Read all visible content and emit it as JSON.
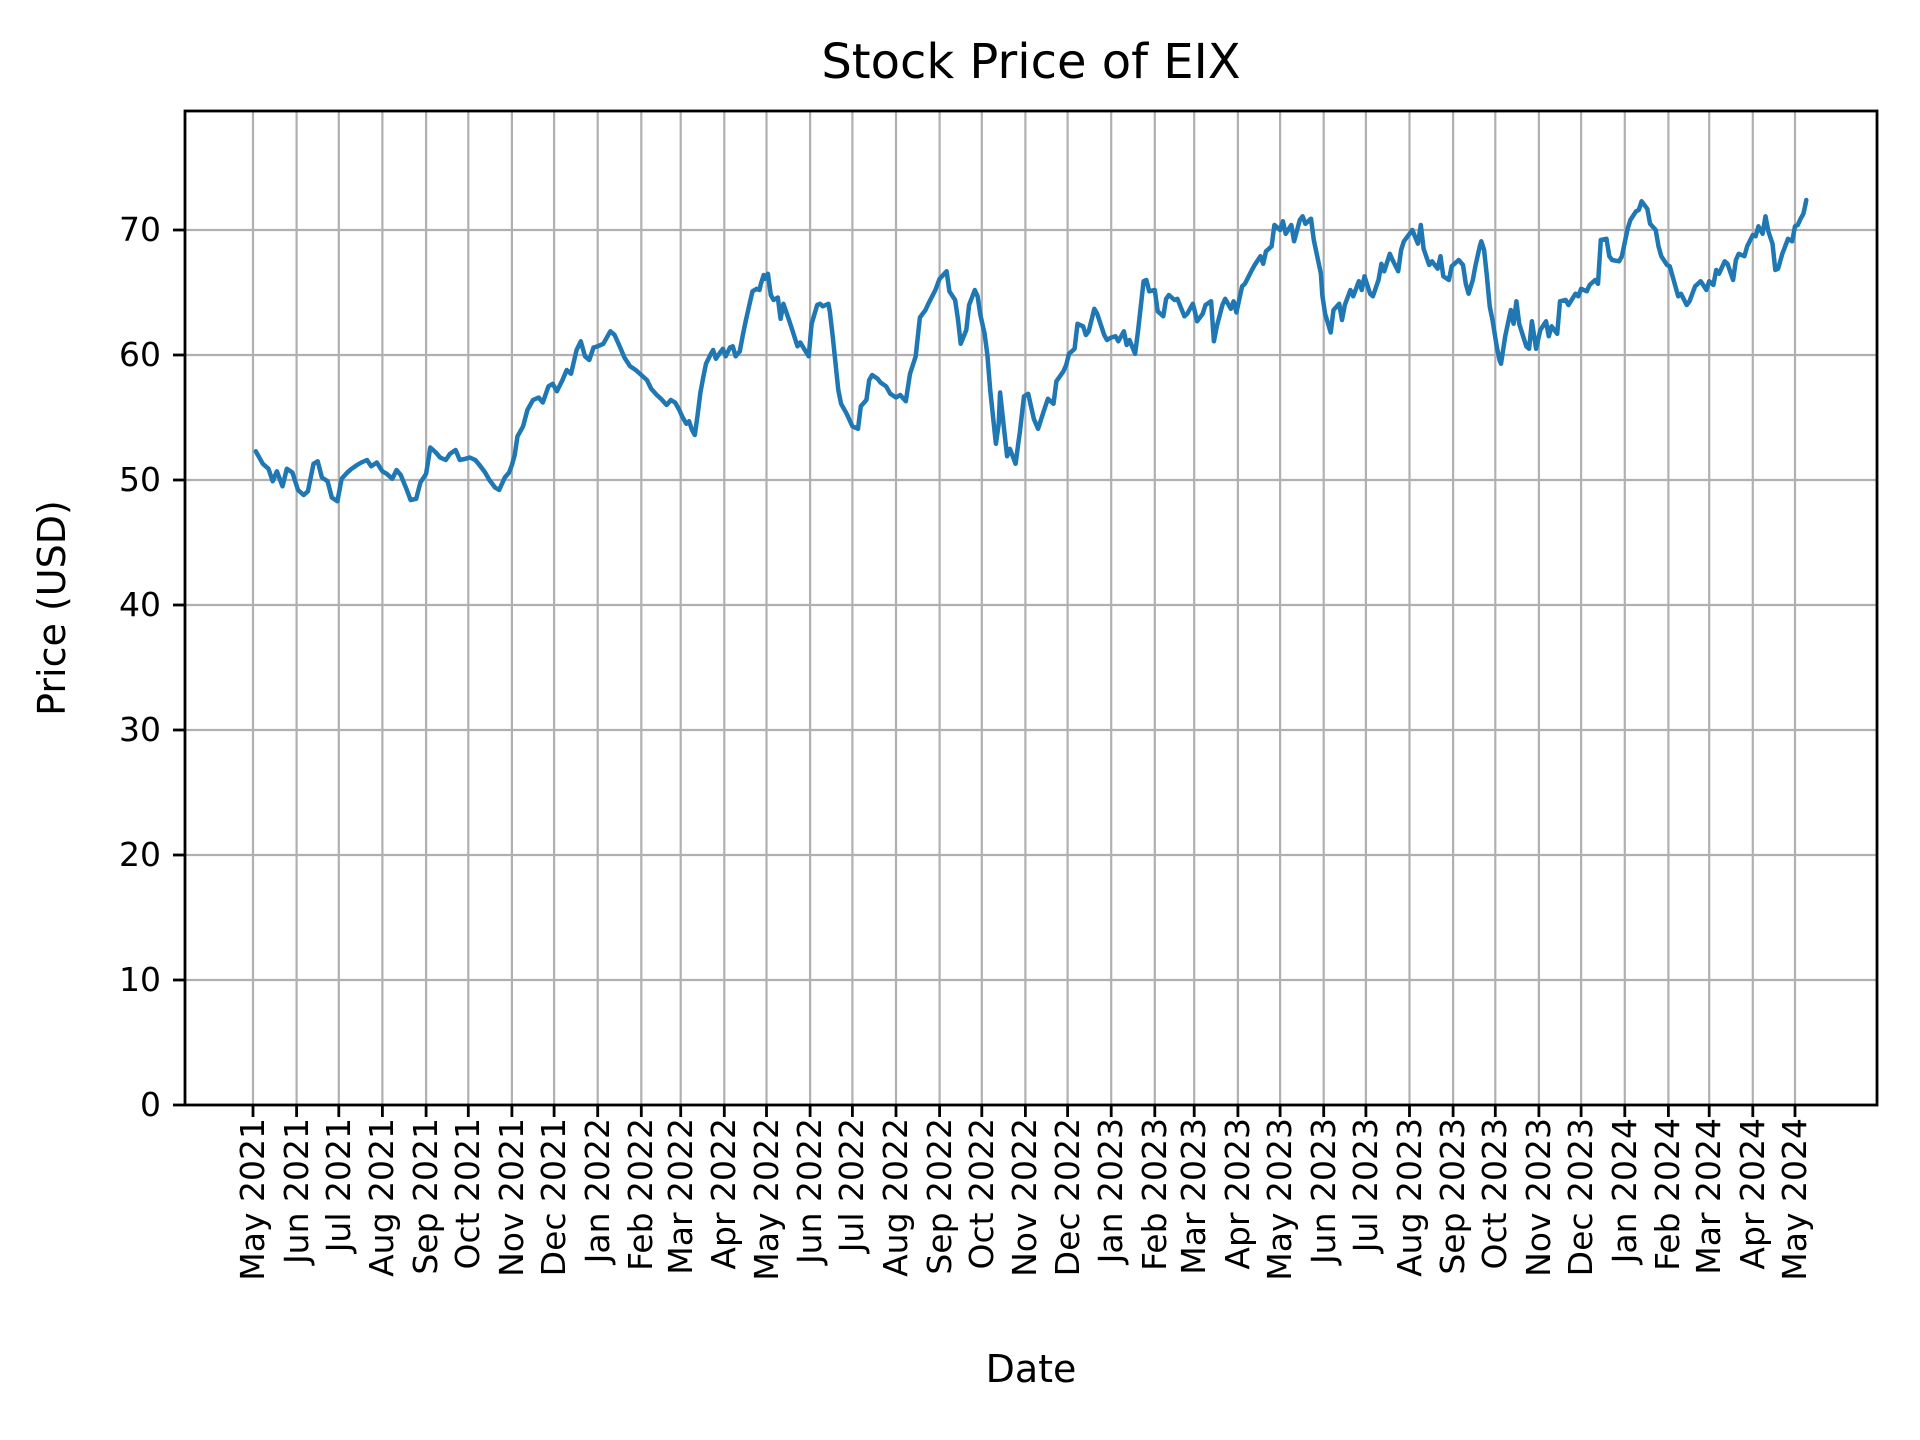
{
  "figure": {
    "title": "Stock Price of EIX",
    "xlabel": "Date",
    "ylabel": "Price (USD)"
  },
  "chart_data": {
    "type": "line",
    "title": "Stock Price of EIX",
    "xlabel": "Date",
    "ylabel": "Price (USD)",
    "series_name": "EIX",
    "line_color": "#1f77b4",
    "grid": true,
    "grid_color": "#b0b0b0",
    "legend": "none",
    "ylim": [
      0,
      79.5
    ],
    "y_ticks": [
      0,
      10,
      20,
      30,
      40,
      50,
      60,
      70
    ],
    "x_epoch": "2021-05-01",
    "x_tick_days": [
      0,
      31,
      61,
      92,
      123,
      153,
      184,
      214,
      245,
      276,
      304,
      335,
      365,
      396,
      426,
      457,
      488,
      518,
      549,
      579,
      610,
      641,
      669,
      700,
      730,
      761,
      791,
      822,
      853,
      883,
      914,
      944,
      975,
      1006,
      1035,
      1066,
      1096
    ],
    "x_tick_labels": [
      "May 2021",
      "Jun 2021",
      "Jul 2021",
      "Aug 2021",
      "Sep 2021",
      "Oct 2021",
      "Nov 2021",
      "Dec 2021",
      "Jan 2022",
      "Feb 2022",
      "Mar 2022",
      "Apr 2022",
      "May 2022",
      "Jun 2022",
      "Jul 2022",
      "Aug 2022",
      "Sep 2022",
      "Oct 2022",
      "Nov 2022",
      "Dec 2022",
      "Jan 2023",
      "Feb 2023",
      "Mar 2023",
      "Apr 2023",
      "May 2023",
      "Jun 2023",
      "Jul 2023",
      "Aug 2023",
      "Sep 2023",
      "Oct 2023",
      "Nov 2023",
      "Dec 2023",
      "Jan 2024",
      "Feb 2024",
      "Mar 2024",
      "Apr 2024",
      "May 2024"
    ],
    "points": [
      [
        2,
        52.3
      ],
      [
        4,
        51.9
      ],
      [
        7,
        51.3
      ],
      [
        11,
        50.9
      ],
      [
        14,
        49.9
      ],
      [
        17,
        50.7
      ],
      [
        21,
        49.5
      ],
      [
        24,
        50.9
      ],
      [
        28,
        50.6
      ],
      [
        32,
        49.2
      ],
      [
        36,
        48.8
      ],
      [
        39,
        49.1
      ],
      [
        43,
        51.3
      ],
      [
        46,
        51.5
      ],
      [
        49,
        50.2
      ],
      [
        53,
        49.9
      ],
      [
        56,
        48.6
      ],
      [
        60,
        48.3
      ],
      [
        63,
        50.1
      ],
      [
        67,
        50.6
      ],
      [
        70,
        50.9
      ],
      [
        74,
        51.2
      ],
      [
        77,
        51.4
      ],
      [
        81,
        51.6
      ],
      [
        84,
        51.1
      ],
      [
        88,
        51.4
      ],
      [
        92,
        50.7
      ],
      [
        95,
        50.5
      ],
      [
        99,
        50.1
      ],
      [
        102,
        50.8
      ],
      [
        105,
        50.4
      ],
      [
        109,
        49.3
      ],
      [
        112,
        48.4
      ],
      [
        116,
        48.5
      ],
      [
        119,
        49.8
      ],
      [
        123,
        50.5
      ],
      [
        126,
        52.6
      ],
      [
        130,
        52.2
      ],
      [
        133,
        51.8
      ],
      [
        137,
        51.6
      ],
      [
        140,
        52.1
      ],
      [
        144,
        52.4
      ],
      [
        147,
        51.6
      ],
      [
        151,
        51.7
      ],
      [
        154,
        51.8
      ],
      [
        158,
        51.6
      ],
      [
        161,
        51.2
      ],
      [
        165,
        50.6
      ],
      [
        168,
        50.0
      ],
      [
        172,
        49.4
      ],
      [
        175,
        49.2
      ],
      [
        179,
        50.2
      ],
      [
        182,
        50.6
      ],
      [
        184,
        51.2
      ],
      [
        186,
        52.0
      ],
      [
        188,
        53.5
      ],
      [
        192,
        54.3
      ],
      [
        195,
        55.6
      ],
      [
        199,
        56.4
      ],
      [
        203,
        56.6
      ],
      [
        206,
        56.2
      ],
      [
        210,
        57.5
      ],
      [
        213,
        57.7
      ],
      [
        216,
        57.1
      ],
      [
        220,
        58.0
      ],
      [
        223,
        58.8
      ],
      [
        226,
        58.5
      ],
      [
        230,
        60.4
      ],
      [
        233,
        61.1
      ],
      [
        236,
        59.9
      ],
      [
        239,
        59.6
      ],
      [
        242,
        60.6
      ],
      [
        245,
        60.7
      ],
      [
        249,
        60.9
      ],
      [
        251,
        61.3
      ],
      [
        254,
        61.9
      ],
      [
        257,
        61.6
      ],
      [
        261,
        60.6
      ],
      [
        264,
        59.8
      ],
      [
        268,
        59.1
      ],
      [
        272,
        58.8
      ],
      [
        276,
        58.4
      ],
      [
        280,
        58.0
      ],
      [
        283,
        57.3
      ],
      [
        287,
        56.8
      ],
      [
        290,
        56.5
      ],
      [
        294,
        56.0
      ],
      [
        297,
        56.4
      ],
      [
        300,
        56.2
      ],
      [
        303,
        55.6
      ],
      [
        305,
        55.1
      ],
      [
        308,
        54.5
      ],
      [
        310,
        54.7
      ],
      [
        312,
        54.0
      ],
      [
        314,
        53.6
      ],
      [
        316,
        55.2
      ],
      [
        318,
        57.0
      ],
      [
        320,
        58.2
      ],
      [
        322,
        59.3
      ],
      [
        325,
        60.0
      ],
      [
        327,
        60.4
      ],
      [
        329,
        59.7
      ],
      [
        332,
        60.2
      ],
      [
        334,
        60.5
      ],
      [
        336,
        59.9
      ],
      [
        339,
        60.6
      ],
      [
        341,
        60.7
      ],
      [
        343,
        59.9
      ],
      [
        346,
        60.3
      ],
      [
        348,
        61.5
      ],
      [
        350,
        62.6
      ],
      [
        353,
        64.1
      ],
      [
        355,
        65.1
      ],
      [
        358,
        65.3
      ],
      [
        360,
        65.2
      ],
      [
        361,
        65.7
      ],
      [
        363,
        66.4
      ],
      [
        364,
        66.1
      ],
      [
        366,
        66.5
      ],
      [
        368,
        64.8
      ],
      [
        370,
        64.4
      ],
      [
        373,
        64.6
      ],
      [
        375,
        62.9
      ],
      [
        377,
        64.1
      ],
      [
        381,
        62.8
      ],
      [
        383,
        62.1
      ],
      [
        387,
        60.7
      ],
      [
        389,
        61.0
      ],
      [
        395,
        59.9
      ],
      [
        397,
        62.5
      ],
      [
        401,
        64.0
      ],
      [
        403,
        64.1
      ],
      [
        405,
        63.9
      ],
      [
        409,
        64.1
      ],
      [
        410,
        63.5
      ],
      [
        412,
        61.5
      ],
      [
        416,
        57.2
      ],
      [
        418,
        56.1
      ],
      [
        422,
        55.3
      ],
      [
        424,
        54.8
      ],
      [
        426,
        54.3
      ],
      [
        430,
        54.1
      ],
      [
        432,
        55.9
      ],
      [
        436,
        56.4
      ],
      [
        438,
        58.0
      ],
      [
        440,
        58.4
      ],
      [
        444,
        58.1
      ],
      [
        446,
        57.8
      ],
      [
        450,
        57.5
      ],
      [
        453,
        56.9
      ],
      [
        457,
        56.6
      ],
      [
        460,
        56.8
      ],
      [
        464,
        56.3
      ],
      [
        467,
        58.5
      ],
      [
        471,
        59.9
      ],
      [
        474,
        63.0
      ],
      [
        478,
        63.6
      ],
      [
        480,
        64.1
      ],
      [
        485,
        65.2
      ],
      [
        488,
        66.1
      ],
      [
        493,
        66.7
      ],
      [
        495,
        65.1
      ],
      [
        499,
        64.4
      ],
      [
        501,
        62.9
      ],
      [
        503,
        60.9
      ],
      [
        507,
        62.0
      ],
      [
        509,
        64.0
      ],
      [
        513,
        65.2
      ],
      [
        515,
        64.7
      ],
      [
        517,
        63.2
      ],
      [
        520,
        61.7
      ],
      [
        522,
        60.0
      ],
      [
        524,
        57.2
      ],
      [
        528,
        52.9
      ],
      [
        530,
        54.5
      ],
      [
        531,
        57.0
      ],
      [
        534,
        53.9
      ],
      [
        536,
        51.9
      ],
      [
        538,
        52.5
      ],
      [
        542,
        51.3
      ],
      [
        544,
        53.0
      ],
      [
        545,
        53.8
      ],
      [
        548,
        56.7
      ],
      [
        551,
        56.9
      ],
      [
        555,
        54.9
      ],
      [
        558,
        54.1
      ],
      [
        562,
        55.5
      ],
      [
        565,
        56.5
      ],
      [
        569,
        56.1
      ],
      [
        571,
        57.9
      ],
      [
        576,
        58.7
      ],
      [
        578,
        59.2
      ],
      [
        580,
        60.1
      ],
      [
        584,
        60.5
      ],
      [
        586,
        62.5
      ],
      [
        590,
        62.3
      ],
      [
        592,
        61.6
      ],
      [
        594,
        61.9
      ],
      [
        598,
        63.7
      ],
      [
        600,
        63.3
      ],
      [
        605,
        61.6
      ],
      [
        607,
        61.2
      ],
      [
        610,
        61.4
      ],
      [
        613,
        61.5
      ],
      [
        615,
        61.1
      ],
      [
        619,
        61.9
      ],
      [
        621,
        60.8
      ],
      [
        623,
        61.2
      ],
      [
        627,
        60.1
      ],
      [
        629,
        61.9
      ],
      [
        633,
        65.9
      ],
      [
        635,
        66.0
      ],
      [
        637,
        65.1
      ],
      [
        641,
        65.2
      ],
      [
        643,
        63.5
      ],
      [
        647,
        63.1
      ],
      [
        649,
        64.5
      ],
      [
        651,
        64.8
      ],
      [
        655,
        64.4
      ],
      [
        657,
        64.5
      ],
      [
        662,
        63.1
      ],
      [
        664,
        63.3
      ],
      [
        668,
        64.1
      ],
      [
        669,
        63.7
      ],
      [
        671,
        62.7
      ],
      [
        675,
        63.3
      ],
      [
        677,
        64.0
      ],
      [
        681,
        64.3
      ],
      [
        683,
        61.1
      ],
      [
        685,
        62.3
      ],
      [
        689,
        64.0
      ],
      [
        691,
        64.5
      ],
      [
        695,
        63.7
      ],
      [
        697,
        64.3
      ],
      [
        699,
        63.4
      ],
      [
        703,
        65.5
      ],
      [
        705,
        65.7
      ],
      [
        710,
        66.8
      ],
      [
        712,
        67.2
      ],
      [
        716,
        67.9
      ],
      [
        718,
        67.3
      ],
      [
        720,
        68.3
      ],
      [
        724,
        68.7
      ],
      [
        726,
        70.4
      ],
      [
        730,
        70.0
      ],
      [
        732,
        70.7
      ],
      [
        734,
        69.7
      ],
      [
        738,
        70.4
      ],
      [
        740,
        69.1
      ],
      [
        744,
        70.8
      ],
      [
        746,
        71.1
      ],
      [
        748,
        70.5
      ],
      [
        752,
        70.9
      ],
      [
        754,
        69.2
      ],
      [
        759,
        66.5
      ],
      [
        760,
        64.8
      ],
      [
        762,
        63.3
      ],
      [
        766,
        61.8
      ],
      [
        768,
        63.6
      ],
      [
        772,
        64.1
      ],
      [
        774,
        62.8
      ],
      [
        776,
        64.0
      ],
      [
        780,
        65.2
      ],
      [
        782,
        64.7
      ],
      [
        786,
        65.9
      ],
      [
        788,
        65.2
      ],
      [
        790,
        66.3
      ],
      [
        794,
        64.9
      ],
      [
        796,
        64.7
      ],
      [
        800,
        66.0
      ],
      [
        802,
        67.3
      ],
      [
        804,
        66.7
      ],
      [
        808,
        68.1
      ],
      [
        810,
        67.6
      ],
      [
        814,
        66.7
      ],
      [
        816,
        68.4
      ],
      [
        818,
        69.1
      ],
      [
        822,
        69.7
      ],
      [
        824,
        70.0
      ],
      [
        828,
        68.9
      ],
      [
        830,
        70.4
      ],
      [
        832,
        68.5
      ],
      [
        836,
        67.2
      ],
      [
        838,
        67.5
      ],
      [
        842,
        66.9
      ],
      [
        844,
        67.9
      ],
      [
        846,
        66.3
      ],
      [
        850,
        66.0
      ],
      [
        852,
        67.1
      ],
      [
        855,
        67.4
      ],
      [
        857,
        67.6
      ],
      [
        860,
        67.2
      ],
      [
        862,
        65.7
      ],
      [
        864,
        64.9
      ],
      [
        867,
        66.0
      ],
      [
        869,
        67.2
      ],
      [
        872,
        68.7
      ],
      [
        873,
        69.1
      ],
      [
        875,
        68.4
      ],
      [
        877,
        66.3
      ],
      [
        879,
        63.9
      ],
      [
        881,
        62.8
      ],
      [
        884,
        60.7
      ],
      [
        886,
        59.6
      ],
      [
        887,
        59.3
      ],
      [
        890,
        61.5
      ],
      [
        894,
        63.6
      ],
      [
        896,
        62.5
      ],
      [
        898,
        64.3
      ],
      [
        900,
        62.5
      ],
      [
        905,
        60.7
      ],
      [
        907,
        60.5
      ],
      [
        909,
        62.7
      ],
      [
        912,
        60.5
      ],
      [
        915,
        62.0
      ],
      [
        919,
        62.7
      ],
      [
        921,
        61.5
      ],
      [
        923,
        62.3
      ],
      [
        927,
        61.7
      ],
      [
        929,
        64.3
      ],
      [
        933,
        64.4
      ],
      [
        935,
        64.0
      ],
      [
        940,
        64.9
      ],
      [
        942,
        64.7
      ],
      [
        944,
        65.3
      ],
      [
        948,
        65.1
      ],
      [
        950,
        65.6
      ],
      [
        954,
        66.0
      ],
      [
        956,
        65.7
      ],
      [
        958,
        69.2
      ],
      [
        962,
        69.3
      ],
      [
        964,
        67.9
      ],
      [
        966,
        67.6
      ],
      [
        971,
        67.5
      ],
      [
        973,
        67.9
      ],
      [
        977,
        70.1
      ],
      [
        979,
        70.8
      ],
      [
        983,
        71.5
      ],
      [
        985,
        71.6
      ],
      [
        987,
        72.3
      ],
      [
        991,
        71.7
      ],
      [
        993,
        70.5
      ],
      [
        997,
        70.0
      ],
      [
        999,
        68.7
      ],
      [
        1001,
        67.9
      ],
      [
        1005,
        67.2
      ],
      [
        1007,
        67.1
      ],
      [
        1011,
        65.5
      ],
      [
        1013,
        64.7
      ],
      [
        1015,
        64.9
      ],
      [
        1019,
        64.0
      ],
      [
        1021,
        64.3
      ],
      [
        1025,
        65.5
      ],
      [
        1027,
        65.7
      ],
      [
        1029,
        65.9
      ],
      [
        1033,
        65.2
      ],
      [
        1035,
        65.9
      ],
      [
        1038,
        65.6
      ],
      [
        1040,
        66.8
      ],
      [
        1042,
        66.5
      ],
      [
        1046,
        67.5
      ],
      [
        1048,
        67.3
      ],
      [
        1052,
        66.0
      ],
      [
        1054,
        67.6
      ],
      [
        1056,
        68.1
      ],
      [
        1060,
        67.9
      ],
      [
        1062,
        68.7
      ],
      [
        1066,
        69.6
      ],
      [
        1068,
        69.5
      ],
      [
        1070,
        70.3
      ],
      [
        1073,
        69.7
      ],
      [
        1075,
        71.1
      ],
      [
        1077,
        69.9
      ],
      [
        1080,
        68.9
      ],
      [
        1082,
        66.8
      ],
      [
        1084,
        66.9
      ],
      [
        1087,
        68.1
      ],
      [
        1089,
        68.7
      ],
      [
        1091,
        69.3
      ],
      [
        1094,
        69.1
      ],
      [
        1096,
        70.3
      ],
      [
        1098,
        70.4
      ],
      [
        1100,
        70.9
      ],
      [
        1102,
        71.3
      ],
      [
        1103,
        71.8
      ],
      [
        1104,
        72.4
      ]
    ]
  }
}
